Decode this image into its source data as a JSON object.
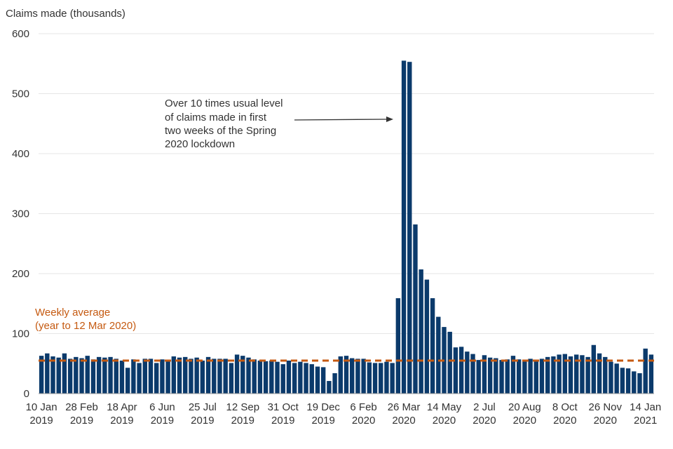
{
  "chart_data": {
    "type": "bar",
    "ylabel": "Claims made (thousands)",
    "ylim": [
      0,
      600
    ],
    "yticks": [
      0,
      100,
      200,
      300,
      400,
      500,
      600
    ],
    "grid": true,
    "bar_color": "#0b3a6b",
    "average_color": "#c55a11",
    "xtick_labels": [
      {
        "line1": "10 Jan",
        "line2": "2019",
        "index": 0
      },
      {
        "line1": "28 Feb",
        "line2": "2019",
        "index": 7
      },
      {
        "line1": "18 Apr",
        "line2": "2019",
        "index": 14
      },
      {
        "line1": "6 Jun",
        "line2": "2019",
        "index": 21
      },
      {
        "line1": "25 Jul",
        "line2": "2019",
        "index": 28
      },
      {
        "line1": "12 Sep",
        "line2": "2019",
        "index": 35
      },
      {
        "line1": "31 Oct",
        "line2": "2019",
        "index": 42
      },
      {
        "line1": "19 Dec",
        "line2": "2019",
        "index": 49
      },
      {
        "line1": "6 Feb",
        "line2": "2020",
        "index": 56
      },
      {
        "line1": "26 Mar",
        "line2": "2020",
        "index": 63
      },
      {
        "line1": "14 May",
        "line2": "2020",
        "index": 70
      },
      {
        "line1": "2 Jul",
        "line2": "2020",
        "index": 77
      },
      {
        "line1": "20 Aug",
        "line2": "2020",
        "index": 84
      },
      {
        "line1": "8 Oct",
        "line2": "2020",
        "index": 91
      },
      {
        "line1": "26 Nov",
        "line2": "2020",
        "index": 98
      },
      {
        "line1": "14 Jan",
        "line2": "2021",
        "index": 105
      }
    ],
    "values": [
      63,
      67,
      62,
      60,
      67,
      58,
      61,
      59,
      63,
      57,
      61,
      60,
      61,
      58,
      55,
      43,
      57,
      51,
      58,
      58,
      51,
      57,
      56,
      62,
      60,
      61,
      58,
      60,
      55,
      61,
      58,
      58,
      58,
      51,
      65,
      63,
      60,
      57,
      55,
      54,
      55,
      53,
      49,
      55,
      51,
      53,
      51,
      49,
      45,
      44,
      21,
      34,
      62,
      63,
      59,
      58,
      58,
      52,
      51,
      51,
      53,
      51,
      159,
      555,
      553,
      282,
      207,
      190,
      159,
      128,
      111,
      103,
      77,
      78,
      70,
      66,
      56,
      64,
      60,
      59,
      56,
      57,
      63,
      57,
      54,
      58,
      56,
      58,
      61,
      62,
      65,
      66,
      62,
      65,
      64,
      61,
      81,
      67,
      61,
      53,
      50,
      43,
      42,
      37,
      34,
      75,
      65
    ],
    "average": {
      "value": 55,
      "label_line1": "Weekly average",
      "label_line2": "(year to 12 Mar 2020)"
    },
    "annotation": {
      "lines": [
        "Over 10 times usual level",
        "of claims made in first",
        "two weeks of the Spring",
        "2020 lockdown"
      ]
    }
  }
}
